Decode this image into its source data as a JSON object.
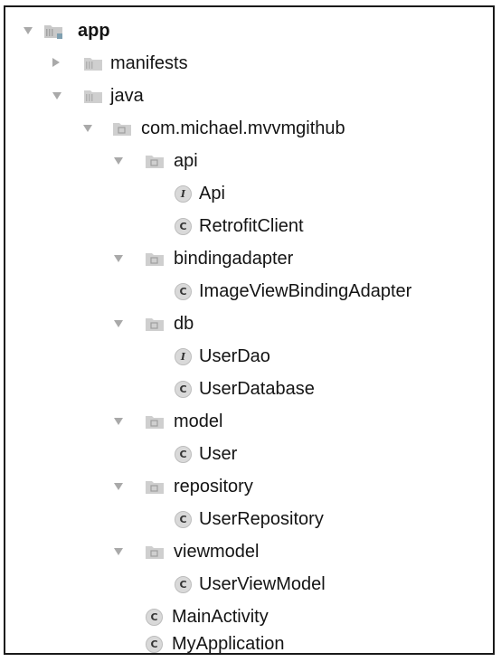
{
  "tree": {
    "root": {
      "label": "app"
    },
    "manifests": {
      "label": "manifests"
    },
    "java": {
      "label": "java"
    },
    "package": {
      "label": "com.michael.mvvmgithub"
    },
    "api": {
      "label": "api"
    },
    "api_interface": {
      "label": "Api",
      "badge": "I"
    },
    "retrofit_client": {
      "label": "RetrofitClient",
      "badge": "C"
    },
    "bindingadapter": {
      "label": "bindingadapter"
    },
    "image_view_binding_adapter": {
      "label": "ImageViewBindingAdapter",
      "badge": "C"
    },
    "db": {
      "label": "db"
    },
    "user_dao": {
      "label": "UserDao",
      "badge": "I"
    },
    "user_database": {
      "label": "UserDatabase",
      "badge": "C"
    },
    "model": {
      "label": "model"
    },
    "user": {
      "label": "User",
      "badge": "C"
    },
    "repository": {
      "label": "repository"
    },
    "user_repository": {
      "label": "UserRepository",
      "badge": "C"
    },
    "viewmodel": {
      "label": "viewmodel"
    },
    "user_view_model": {
      "label": "UserViewModel",
      "badge": "C"
    },
    "main_activity": {
      "label": "MainActivity",
      "badge": "C"
    },
    "my_application": {
      "label": "MyApplication",
      "badge": "C"
    }
  },
  "icons": {
    "expanded": "chevron-down-icon",
    "collapsed": "chevron-right-icon",
    "folder": "folder-icon",
    "module": "module-folder-icon",
    "package": "package-folder-icon",
    "class": "class-icon",
    "interface": "interface-icon"
  },
  "colors": {
    "text": "#141414",
    "arrow": "#a9a9a9",
    "folder": "#c9c9c9",
    "badge": "#d9d9d9",
    "border": "#1a1a1a"
  }
}
